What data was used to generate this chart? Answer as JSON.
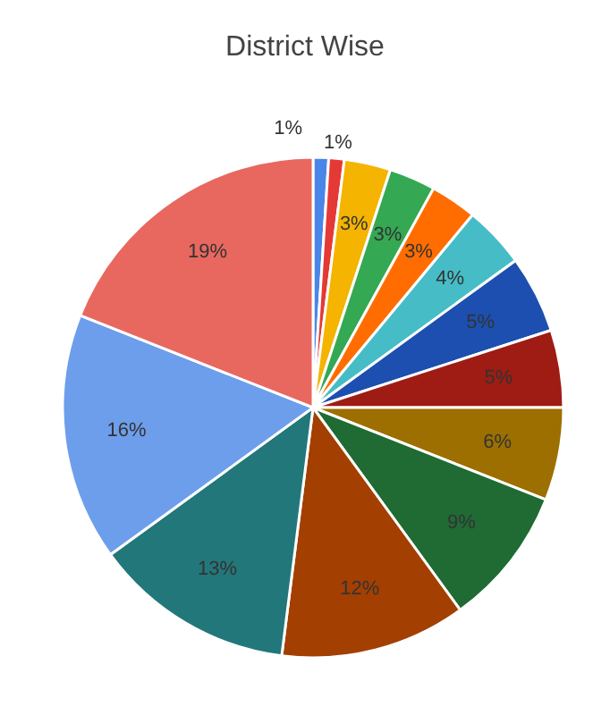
{
  "chart_data": {
    "type": "pie",
    "title": "District Wise",
    "categories": [
      null,
      null,
      null,
      null,
      null,
      null,
      null,
      null,
      null,
      null,
      null,
      null,
      null,
      null
    ],
    "values": [
      1,
      1,
      3,
      3,
      3,
      4,
      5,
      5,
      6,
      9,
      12,
      13,
      16,
      19
    ],
    "colors": [
      "#4a86e8",
      "#e53935",
      "#f4b400",
      "#34a853",
      "#ff6d01",
      "#46bdc6",
      "#1c4faf",
      "#9e1c14",
      "#9c6f00",
      "#1f6b33",
      "#a33f00",
      "#22777a",
      "#6d9eeb",
      "#e8685f"
    ],
    "value_labels": [
      "1%",
      "1%",
      "3%",
      "3%",
      "3%",
      "4%",
      "5%",
      "5%",
      "6%",
      "9%",
      "12%",
      "13%",
      "16%",
      "19%"
    ]
  }
}
